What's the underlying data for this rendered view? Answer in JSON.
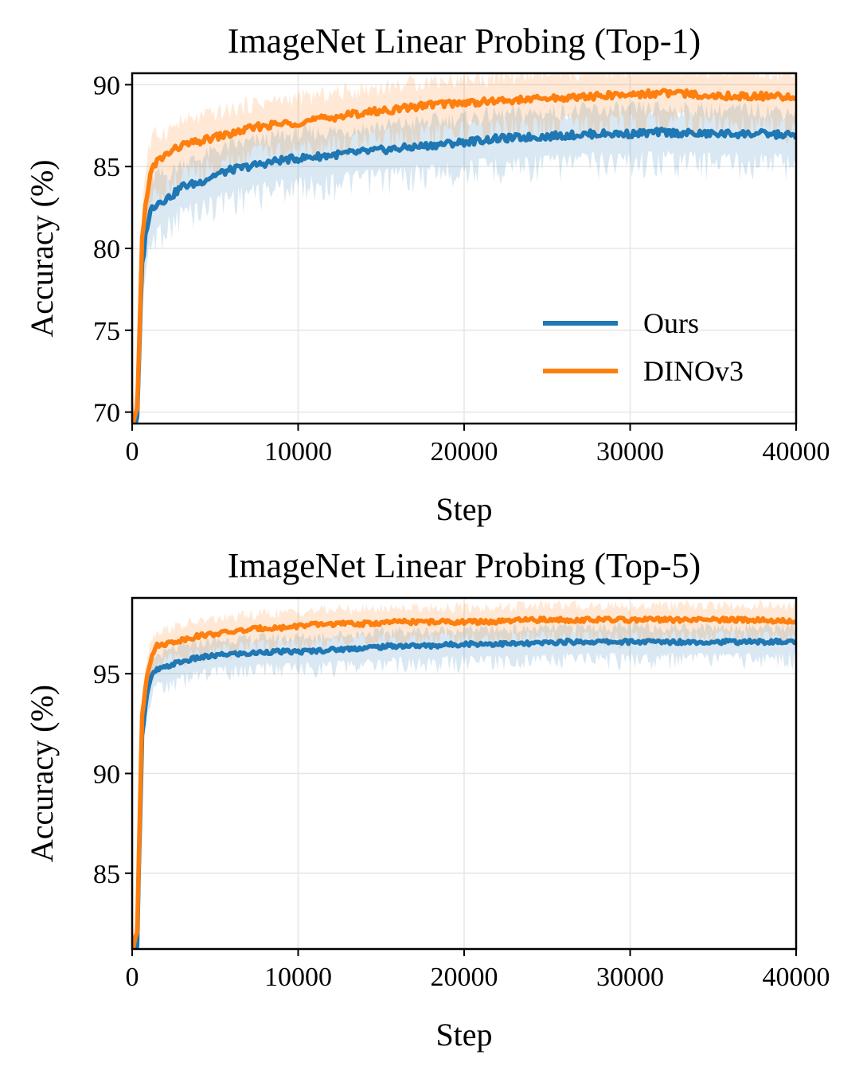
{
  "chart_data": [
    {
      "type": "line",
      "title": "ImageNet Linear Probing (Top-1)",
      "xlabel": "Step",
      "ylabel": "Accuracy (%)",
      "xlim": [
        0,
        40000
      ],
      "ylim": [
        69.3,
        90.7
      ],
      "xticks": [
        0,
        10000,
        20000,
        30000,
        40000
      ],
      "yticks": [
        70,
        75,
        80,
        85,
        90
      ],
      "grid": true,
      "legend": {
        "position": "lower-right",
        "entries": [
          "Ours",
          "DINOv3"
        ]
      },
      "series": [
        {
          "name": "Ours",
          "color": "#1f77b4",
          "x": [
            0,
            300,
            600,
            900,
            1200,
            1500,
            2000,
            2500,
            3000,
            4000,
            5000,
            6000,
            7000,
            8000,
            9000,
            10000,
            12000,
            14000,
            16000,
            18000,
            20000,
            22000,
            24000,
            26000,
            28000,
            30000,
            32000,
            34000,
            36000,
            38000,
            40000
          ],
          "values": [
            69.0,
            69.5,
            79.0,
            81.5,
            82.5,
            82.8,
            83.0,
            83.3,
            83.8,
            84.0,
            84.5,
            84.8,
            85.0,
            85.2,
            85.4,
            85.5,
            85.7,
            85.9,
            86.1,
            86.3,
            86.5,
            86.7,
            86.8,
            86.9,
            87.0,
            87.0,
            87.1,
            87.0,
            87.0,
            87.0,
            86.9
          ],
          "band": [
            2.5,
            2.5,
            3.0,
            3.0,
            2.5,
            2.3,
            2.0,
            2.0,
            2.0,
            2.0,
            2.0,
            2.0,
            2.0,
            2.0,
            2.0,
            2.0,
            2.0,
            2.0,
            2.0,
            2.0,
            2.0,
            2.0,
            2.0,
            2.0,
            2.0,
            2.0,
            2.0,
            2.0,
            2.0,
            2.0,
            2.0
          ]
        },
        {
          "name": "DINOv3",
          "color": "#ff7f0e",
          "x": [
            0,
            300,
            600,
            900,
            1200,
            1500,
            2000,
            2500,
            3000,
            4000,
            5000,
            6000,
            7000,
            8000,
            9000,
            10000,
            12000,
            14000,
            16000,
            18000,
            20000,
            22000,
            24000,
            26000,
            28000,
            30000,
            32000,
            34000,
            36000,
            38000,
            40000
          ],
          "values": [
            69.0,
            70.0,
            80.5,
            83.5,
            84.8,
            85.3,
            85.7,
            86.0,
            86.3,
            86.5,
            86.8,
            87.0,
            87.3,
            87.5,
            87.6,
            87.7,
            88.0,
            88.3,
            88.5,
            88.8,
            88.9,
            89.0,
            89.1,
            89.2,
            89.3,
            89.4,
            89.5,
            89.4,
            89.3,
            89.3,
            89.2
          ],
          "band": [
            2.5,
            2.5,
            3.0,
            3.0,
            2.5,
            2.3,
            2.0,
            2.0,
            2.0,
            2.0,
            2.0,
            2.0,
            2.0,
            2.0,
            2.0,
            2.0,
            2.0,
            2.0,
            2.0,
            2.0,
            2.0,
            2.0,
            2.0,
            2.0,
            2.0,
            2.0,
            2.0,
            2.0,
            2.0,
            2.0,
            2.0
          ]
        }
      ]
    },
    {
      "type": "line",
      "title": "ImageNet Linear Probing (Top-5)",
      "xlabel": "Step",
      "ylabel": "Accuracy (%)",
      "xlim": [
        0,
        40000
      ],
      "ylim": [
        81.2,
        98.8
      ],
      "xticks": [
        0,
        10000,
        20000,
        30000,
        40000
      ],
      "yticks": [
        85,
        90,
        95
      ],
      "grid": true,
      "series": [
        {
          "name": "Ours",
          "color": "#1f77b4",
          "x": [
            0,
            300,
            600,
            900,
            1200,
            1500,
            2000,
            2500,
            3000,
            4000,
            5000,
            6000,
            7000,
            8000,
            9000,
            10000,
            12000,
            14000,
            16000,
            18000,
            20000,
            22000,
            24000,
            26000,
            28000,
            30000,
            32000,
            34000,
            36000,
            38000,
            40000
          ],
          "values": [
            81.0,
            81.5,
            92.0,
            94.0,
            94.9,
            95.2,
            95.3,
            95.5,
            95.6,
            95.8,
            95.9,
            96.0,
            96.0,
            96.1,
            96.1,
            96.1,
            96.2,
            96.3,
            96.4,
            96.4,
            96.5,
            96.5,
            96.5,
            96.6,
            96.6,
            96.6,
            96.6,
            96.6,
            96.6,
            96.6,
            96.6
          ],
          "band": [
            1.5,
            1.5,
            1.5,
            1.3,
            1.2,
            1.0,
            1.0,
            1.0,
            1.0,
            1.0,
            1.0,
            1.0,
            1.0,
            1.0,
            1.0,
            1.0,
            1.0,
            1.0,
            1.0,
            1.0,
            1.0,
            1.0,
            1.0,
            1.0,
            1.0,
            1.0,
            1.0,
            1.0,
            1.0,
            1.0,
            1.0
          ]
        },
        {
          "name": "DINOv3",
          "color": "#ff7f0e",
          "x": [
            0,
            300,
            600,
            900,
            1200,
            1500,
            2000,
            2500,
            3000,
            4000,
            5000,
            6000,
            7000,
            8000,
            9000,
            10000,
            12000,
            14000,
            16000,
            18000,
            20000,
            22000,
            24000,
            26000,
            28000,
            30000,
            32000,
            34000,
            36000,
            38000,
            40000
          ],
          "values": [
            81.0,
            82.0,
            93.0,
            95.0,
            96.0,
            96.4,
            96.5,
            96.6,
            96.7,
            96.9,
            97.0,
            97.1,
            97.2,
            97.3,
            97.3,
            97.4,
            97.5,
            97.5,
            97.6,
            97.6,
            97.6,
            97.6,
            97.7,
            97.7,
            97.7,
            97.7,
            97.7,
            97.7,
            97.7,
            97.7,
            97.6
          ],
          "band": [
            1.5,
            1.5,
            1.5,
            1.3,
            1.2,
            1.0,
            1.0,
            1.0,
            1.0,
            1.0,
            1.0,
            1.0,
            1.0,
            1.0,
            1.0,
            1.0,
            1.0,
            1.0,
            1.0,
            1.0,
            1.0,
            1.0,
            1.0,
            1.0,
            1.0,
            1.0,
            1.0,
            1.0,
            1.0,
            1.0,
            1.0
          ]
        }
      ]
    }
  ]
}
